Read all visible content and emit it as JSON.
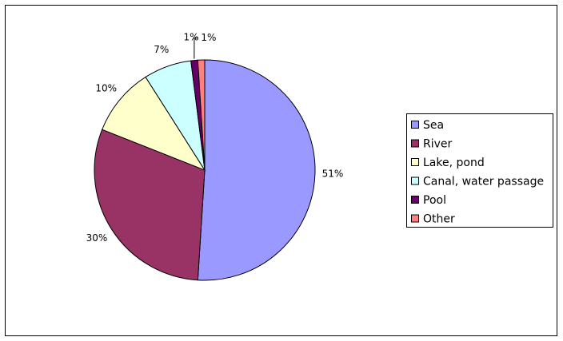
{
  "chart_data": {
    "type": "pie",
    "categories": [
      "Sea",
      "River",
      "Lake, pond",
      "Canal, water passage",
      "Pool",
      "Other"
    ],
    "values": [
      51,
      30,
      10,
      7,
      1,
      1
    ],
    "value_labels": [
      "51%",
      "30%",
      "10%",
      "7%",
      "1%",
      "1%"
    ],
    "colors": [
      "#9999ff",
      "#993366",
      "#ffffcc",
      "#ccffff",
      "#660066",
      "#ff8080"
    ],
    "legend": "right"
  }
}
